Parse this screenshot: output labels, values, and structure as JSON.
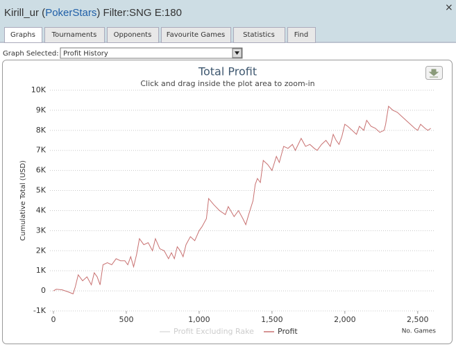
{
  "window": {
    "title_parts": [
      "Kirill_ur (",
      "PokerStars",
      ") Filter:SNG E:180"
    ],
    "close": "×"
  },
  "tabs": [
    "Graphs",
    "Tournaments",
    "Opponents",
    "Favourite Games",
    "Statistics",
    "Find"
  ],
  "graph_selected": {
    "label": "Graph Selected:",
    "value": "Profit History"
  },
  "chart_data": {
    "type": "line",
    "title": "Total Profit",
    "subtitle": "Click and drag inside the plot area to zoom-in",
    "y_label": "Cumulative Total (USD)",
    "x_label": "No. Games",
    "x": [
      0,
      20,
      60,
      100,
      135,
      150,
      170,
      200,
      230,
      260,
      280,
      300,
      320,
      340,
      370,
      400,
      430,
      460,
      490,
      510,
      530,
      550,
      570,
      590,
      620,
      650,
      680,
      700,
      730,
      760,
      790,
      810,
      830,
      850,
      870,
      890,
      910,
      940,
      970,
      1000,
      1020,
      1050,
      1065,
      1100,
      1140,
      1180,
      1200,
      1240,
      1270,
      1300,
      1320,
      1340,
      1370,
      1385,
      1400,
      1420,
      1440,
      1470,
      1500,
      1530,
      1550,
      1580,
      1610,
      1640,
      1660,
      1700,
      1730,
      1760,
      1790,
      1810,
      1840,
      1870,
      1900,
      1920,
      1940,
      1960,
      1980,
      2000,
      2020,
      2050,
      2080,
      2100,
      2130,
      2150,
      2180,
      2210,
      2240,
      2270,
      2280,
      2300,
      2330,
      2360,
      2390,
      2420,
      2450,
      2480,
      2500,
      2520,
      2550,
      2570,
      2590
    ],
    "series": [
      {
        "name": "Profit Excluding Rake",
        "color": "#cccccc",
        "visible": false
      },
      {
        "name": "Profit",
        "color": "#c87070",
        "visible": true,
        "values": [
          0,
          80,
          50,
          -50,
          -150,
          200,
          800,
          500,
          700,
          300,
          900,
          700,
          300,
          1300,
          1400,
          1300,
          1600,
          1500,
          1500,
          1300,
          1700,
          1200,
          1800,
          2600,
          2300,
          2400,
          2000,
          2600,
          2100,
          2000,
          1600,
          1900,
          1600,
          2200,
          2000,
          1700,
          2300,
          2700,
          2500,
          3000,
          3200,
          3600,
          4600,
          4300,
          4000,
          3800,
          4200,
          3700,
          4000,
          3600,
          3300,
          3800,
          4500,
          5300,
          5600,
          5400,
          6500,
          6300,
          6000,
          6700,
          6400,
          7200,
          7100,
          7300,
          7000,
          7600,
          7200,
          7300,
          7100,
          7000,
          7300,
          7500,
          7200,
          7800,
          7500,
          7300,
          7700,
          8300,
          8200,
          8000,
          7800,
          8200,
          8000,
          8500,
          8200,
          8100,
          7900,
          8000,
          8300,
          9200,
          9000,
          8900,
          8700,
          8500,
          8300,
          8100,
          8000,
          8300,
          8100,
          8000,
          8100
        ]
      }
    ],
    "xlim": [
      0,
      2620
    ],
    "ylim": [
      -1000,
      10000
    ],
    "xticks": [
      0,
      500,
      {
        "value": 1000,
        "label": "1,000"
      },
      {
        "value": 1500,
        "label": "1,500"
      },
      {
        "value": 2000,
        "label": "2,000"
      },
      {
        "value": 2500,
        "label": "2,500"
      }
    ],
    "yticks": [
      {
        "value": -1000,
        "label": "-1K"
      },
      0,
      {
        "value": 1000,
        "label": "1K"
      },
      {
        "value": 2000,
        "label": "2K"
      },
      {
        "value": 3000,
        "label": "3K"
      },
      {
        "value": 4000,
        "label": "4K"
      },
      {
        "value": 5000,
        "label": "5K"
      },
      {
        "value": 6000,
        "label": "6K"
      },
      {
        "value": 7000,
        "label": "7K"
      },
      {
        "value": 8000,
        "label": "8K"
      },
      {
        "value": 9000,
        "label": "9K"
      },
      {
        "value": 10000,
        "label": "10K"
      }
    ],
    "grid": true
  }
}
